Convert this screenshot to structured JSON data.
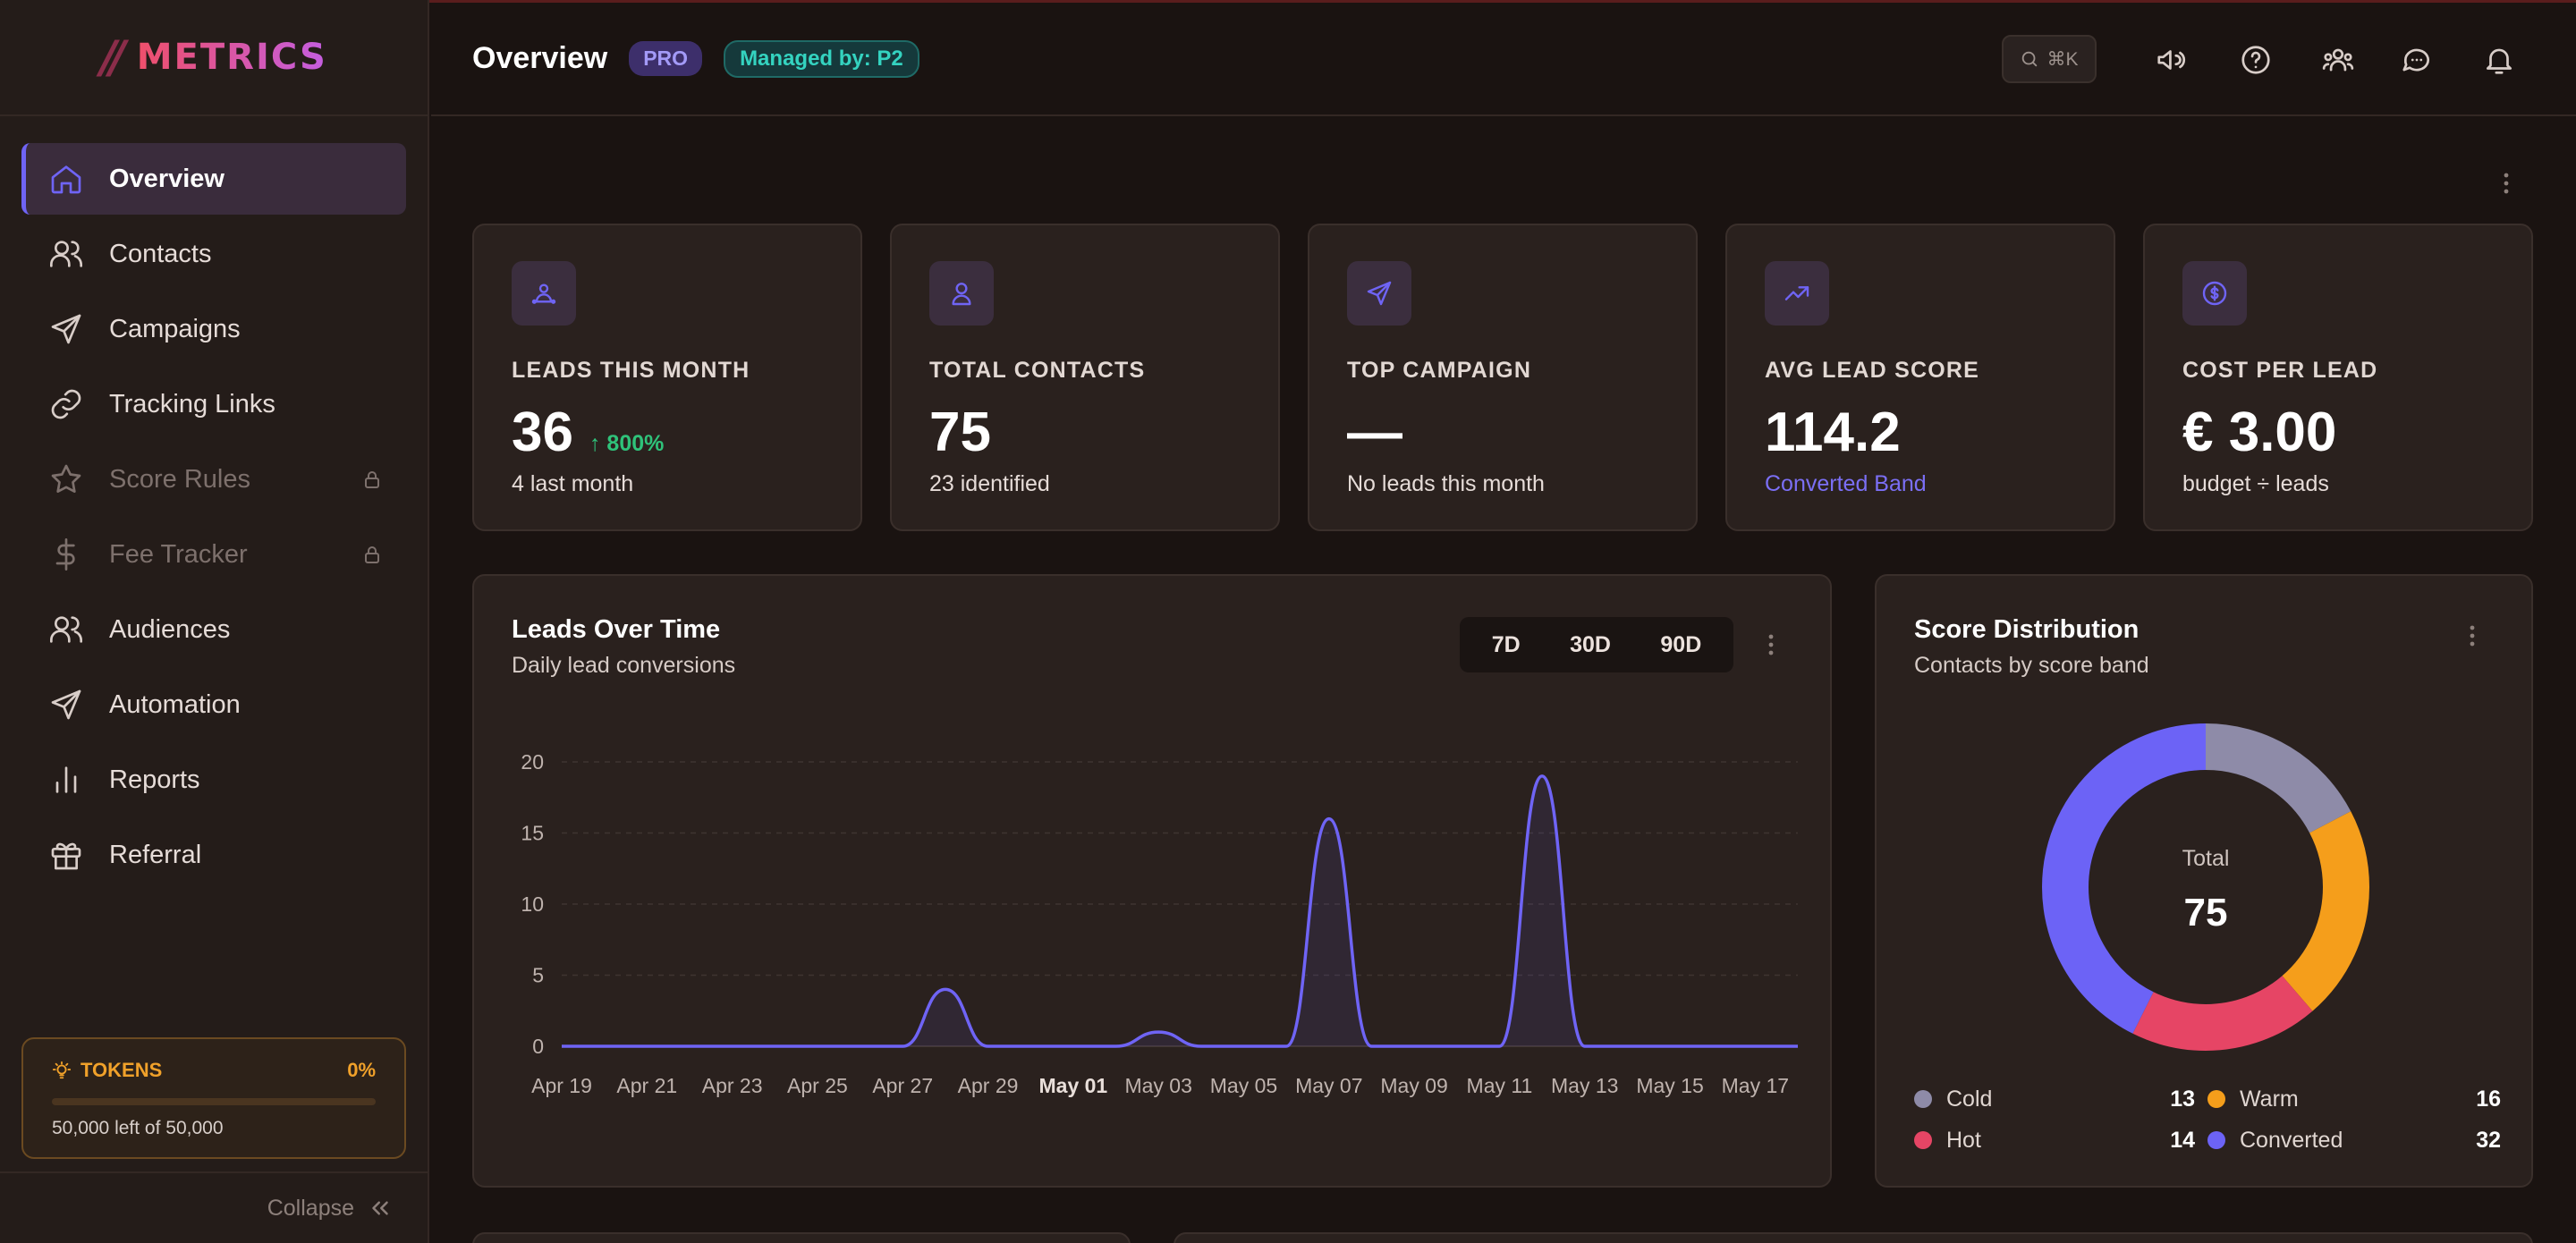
{
  "brand": {
    "slashes": "//",
    "name": "METRICS"
  },
  "header": {
    "title": "Overview",
    "pro_badge": "PRO",
    "managed_badge": "Managed by: P2",
    "search_shortcut": "⌘K"
  },
  "sidebar": {
    "items": [
      {
        "label": "Overview",
        "icon": "home-icon",
        "active": true,
        "locked": false
      },
      {
        "label": "Contacts",
        "icon": "users-icon",
        "active": false,
        "locked": false
      },
      {
        "label": "Campaigns",
        "icon": "send-icon",
        "active": false,
        "locked": false
      },
      {
        "label": "Tracking Links",
        "icon": "link-icon",
        "active": false,
        "locked": false
      },
      {
        "label": "Score Rules",
        "icon": "star-icon",
        "active": false,
        "locked": true
      },
      {
        "label": "Fee Tracker",
        "icon": "dollar-icon",
        "active": false,
        "locked": true
      },
      {
        "label": "Audiences",
        "icon": "users-icon",
        "active": false,
        "locked": false
      },
      {
        "label": "Automation",
        "icon": "send-icon",
        "active": false,
        "locked": false
      },
      {
        "label": "Reports",
        "icon": "bar-chart-icon",
        "active": false,
        "locked": false
      },
      {
        "label": "Referral",
        "icon": "gift-icon",
        "active": false,
        "locked": false
      }
    ],
    "tokens": {
      "title": "TOKENS",
      "percent": "0%",
      "used_fraction": 0,
      "remaining": "50,000 left of 50,000"
    },
    "collapse_label": "Collapse"
  },
  "stats": [
    {
      "icon": "user-hub-icon",
      "label": "LEADS THIS MONTH",
      "value": "36",
      "delta": "↑ 800%",
      "sub": "4 last month"
    },
    {
      "icon": "user-icon",
      "label": "TOTAL CONTACTS",
      "value": "75",
      "delta": "",
      "sub": "23 identified"
    },
    {
      "icon": "send-icon",
      "label": "TOP CAMPAIGN",
      "value": "—",
      "delta": "",
      "sub": "No leads this month"
    },
    {
      "icon": "trending-up-icon",
      "label": "AVG LEAD SCORE",
      "value": "114.2",
      "delta": "",
      "sub": "Converted Band",
      "sub_accent": true
    },
    {
      "icon": "coin-icon",
      "label": "COST PER LEAD",
      "value": "€ 3.00",
      "delta": "",
      "sub": "budget ÷ leads"
    }
  ],
  "leads_chart": {
    "title": "Leads Over Time",
    "subtitle": "Daily lead conversions",
    "ranges": [
      "7D",
      "30D",
      "90D"
    ]
  },
  "score_chart": {
    "title": "Score Distribution",
    "subtitle": "Contacts by score band",
    "center_label": "Total",
    "center_value": "75"
  },
  "colors": {
    "accent": "#6f64f5",
    "positive": "#2fc27a",
    "cold": "#8e8ba8",
    "warm": "#f59e1b",
    "hot": "#e64565",
    "converted": "#6c63f6"
  },
  "chart_data": [
    {
      "type": "area",
      "x": [
        "Apr 19",
        "Apr 20",
        "Apr 21",
        "Apr 22",
        "Apr 23",
        "Apr 24",
        "Apr 25",
        "Apr 26",
        "Apr 27",
        "Apr 28",
        "Apr 29",
        "Apr 30",
        "May 01",
        "May 02",
        "May 03",
        "May 04",
        "May 05",
        "May 06",
        "May 07",
        "May 08",
        "May 09",
        "May 10",
        "May 11",
        "May 12",
        "May 13",
        "May 14",
        "May 15",
        "May 16",
        "May 17",
        "May 18"
      ],
      "x_tick_labels": [
        "Apr 19",
        "Apr 21",
        "Apr 23",
        "Apr 25",
        "Apr 27",
        "Apr 29",
        "May 01",
        "May 03",
        "May 05",
        "May 07",
        "May 09",
        "May 11",
        "May 13",
        "May 15",
        "May 17"
      ],
      "highlight_tick": "May 01",
      "series": [
        {
          "values": [
            0,
            0,
            0,
            0,
            0,
            0,
            0,
            0,
            0,
            4,
            0,
            0,
            0,
            0,
            1,
            0,
            0,
            0,
            16,
            0,
            0,
            0,
            0,
            19,
            0,
            0,
            0,
            0,
            0,
            0
          ]
        }
      ],
      "yticks": [
        0,
        5,
        10,
        15,
        20
      ],
      "ylim": [
        0,
        20
      ],
      "grid": true
    },
    {
      "type": "pie",
      "labels": [
        "Cold",
        "Warm",
        "Hot",
        "Converted"
      ],
      "values": [
        13,
        16,
        14,
        32
      ],
      "total": 75
    }
  ]
}
